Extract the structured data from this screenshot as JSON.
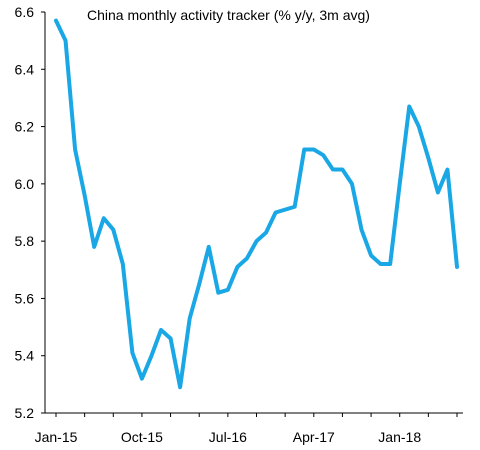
{
  "chart_data": {
    "type": "line",
    "title": "China monthly  activity tracker (% y/y, 3m avg)",
    "xlabel": "",
    "ylabel": "",
    "ylim": [
      5.2,
      6.6
    ],
    "y_ticks": [
      "5.2",
      "5.4",
      "5.6",
      "5.8",
      "6.0",
      "6.2",
      "6.4",
      "6.6"
    ],
    "x_tick_labels": [
      "Jan-15",
      "Oct-15",
      "Jul-16",
      "Apr-17",
      "Jan-18"
    ],
    "grid": false,
    "legend": "none",
    "line_color": "#1aa7e6",
    "series": [
      {
        "x": [
          "Jan-15",
          "Feb-15",
          "Mar-15",
          "Apr-15",
          "May-15",
          "Jun-15",
          "Jul-15",
          "Aug-15",
          "Sep-15",
          "Oct-15",
          "Nov-15",
          "Dec-15",
          "Jan-16",
          "Feb-16",
          "Mar-16",
          "Apr-16",
          "May-16",
          "Jun-16",
          "Jul-16",
          "Aug-16",
          "Sep-16",
          "Oct-16",
          "Nov-16",
          "Dec-16",
          "Jan-17",
          "Feb-17",
          "Mar-17",
          "Apr-17",
          "May-17",
          "Jun-17",
          "Jul-17",
          "Aug-17",
          "Sep-17",
          "Oct-17",
          "Nov-17",
          "Dec-17",
          "Jan-18",
          "Feb-18",
          "Mar-18",
          "Apr-18",
          "May-18",
          "Jun-18",
          "Jul-18"
        ],
        "values": [
          6.57,
          6.5,
          6.12,
          5.96,
          5.78,
          5.88,
          5.84,
          5.72,
          5.41,
          5.32,
          5.4,
          5.49,
          5.46,
          5.29,
          5.53,
          5.65,
          5.78,
          5.62,
          5.63,
          5.71,
          5.74,
          5.8,
          5.83,
          5.9,
          5.91,
          5.92,
          6.12,
          6.12,
          6.1,
          6.05,
          6.05,
          6.0,
          5.84,
          5.75,
          5.72,
          5.72,
          6.0,
          6.27,
          6.2,
          6.09,
          5.97,
          6.05,
          5.71
        ]
      }
    ]
  }
}
